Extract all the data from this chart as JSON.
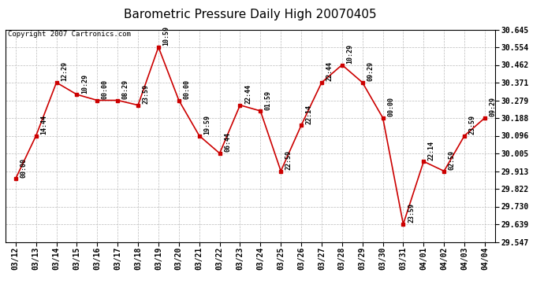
{
  "title": "Barometric Pressure Daily High 20070405",
  "copyright": "Copyright 2007 Cartronics.com",
  "x_labels": [
    "03/12",
    "03/13",
    "03/14",
    "03/15",
    "03/16",
    "03/17",
    "03/18",
    "03/19",
    "03/20",
    "03/21",
    "03/22",
    "03/23",
    "03/24",
    "03/25",
    "03/26",
    "03/27",
    "03/28",
    "03/29",
    "03/30",
    "03/31",
    "04/01",
    "04/02",
    "04/03",
    "04/04"
  ],
  "y_values": [
    29.874,
    30.096,
    30.371,
    30.309,
    30.279,
    30.279,
    30.254,
    30.554,
    30.279,
    30.096,
    30.005,
    30.254,
    30.224,
    29.913,
    30.15,
    30.371,
    30.462,
    30.371,
    30.188,
    29.639,
    29.963,
    29.913,
    30.096,
    30.188
  ],
  "time_labels": [
    "00:00",
    "14:44",
    "12:29",
    "10:29",
    "00:00",
    "08:29",
    "23:59",
    "10:59",
    "00:00",
    "19:59",
    "06:44",
    "22:44",
    "01:59",
    "22:59",
    "22:14",
    "22:44",
    "10:29",
    "09:29",
    "00:00",
    "23:59",
    "22:14",
    "02:59",
    "23:59",
    "09:29"
  ],
  "y_min": 29.547,
  "y_max": 30.645,
  "y_ticks": [
    29.547,
    29.639,
    29.73,
    29.822,
    29.913,
    30.005,
    30.096,
    30.188,
    30.279,
    30.371,
    30.462,
    30.554,
    30.645
  ],
  "line_color": "#cc0000",
  "marker_color": "#cc0000",
  "bg_color": "#ffffff",
  "grid_color": "#bbbbbb",
  "title_fontsize": 11,
  "copyright_fontsize": 6.5,
  "label_fontsize": 6,
  "tick_fontsize": 7
}
